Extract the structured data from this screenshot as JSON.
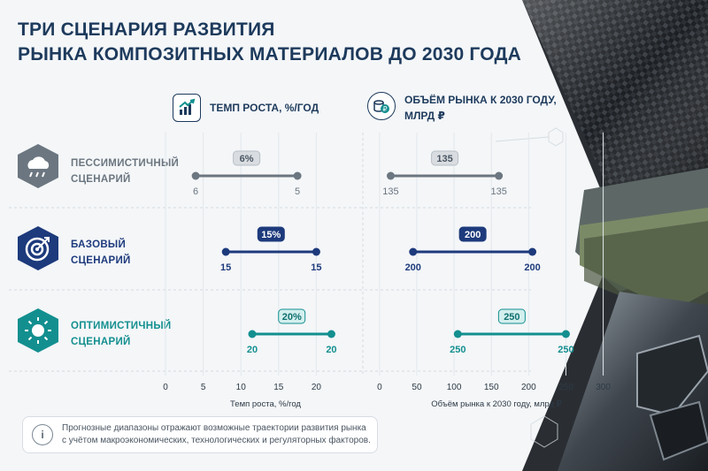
{
  "title": {
    "line1": "ТРИ СЦЕНАРИЯ РАЗВИТИЯ",
    "line2": "РЫНКА КОМПОЗИТНЫХ МАТЕРИАЛОВ ДО 2030 ГОДА"
  },
  "columns": {
    "left": {
      "header": "ТЕМП РОСТА, %/ГОД",
      "icon": "growth-chart-icon"
    },
    "right": {
      "header_line1": "ОБЪЁМ РЫНКА К 2030 ГОДУ,",
      "header_line2": "МЛРД ₽",
      "icon": "coins-ruble-icon"
    }
  },
  "scenarios": [
    {
      "line1": "ПЕССИМИСТИЧНЫЙ",
      "line2": "СЦЕНАРИЙ",
      "icon": "cloud-rain-icon",
      "color": "#6b7680"
    },
    {
      "line1": "БАЗОВЫЙ",
      "line2": "СЦЕНАРИЙ",
      "icon": "target-icon",
      "color": "#1d3a7c"
    },
    {
      "line1": "ОПТИМИСТИЧНЫЙ",
      "line2": "СЦЕНАРИЙ",
      "icon": "sun-icon",
      "color": "#138f8f"
    }
  ],
  "note": {
    "line1": "Прогнозные диапазоны отражают возможные траектории развития рынка",
    "line2": "с учётом макроэкономических, технологических и регуляторных факторов."
  },
  "chart_data": [
    {
      "type": "range",
      "xlabel": "Темп роста, %/год",
      "xlim": [
        -2,
        25
      ],
      "ticks": [
        0,
        5,
        10,
        15,
        20
      ],
      "series": [
        {
          "name": "ПЕССИМИСТИЧНЫЙ СЦЕНАРИЙ",
          "badge": "6%",
          "low_label": "6",
          "high_label": "5",
          "values": [
            4,
            17.5
          ]
        },
        {
          "name": "БАЗОВЫЙ СЦЕНАРИЙ",
          "badge": "15%",
          "low_label": "15",
          "high_label": "15",
          "values": [
            8,
            20
          ]
        },
        {
          "name": "ОПТИМИСТИЧНЫЙ СЦЕНАРИЙ",
          "badge": "20%",
          "low_label": "20",
          "high_label": "20",
          "values": [
            11.5,
            22
          ]
        }
      ]
    },
    {
      "type": "range",
      "xlabel": "Объём рынка к 2030 году, млрд ₽",
      "xlim": [
        -20,
        310
      ],
      "ticks": [
        0,
        50,
        100,
        150,
        200,
        250,
        300
      ],
      "series": [
        {
          "name": "ПЕССИМИСТИЧНЫЙ СЦЕНАРИЙ",
          "badge": "135",
          "low_label": "135",
          "high_label": "135",
          "values": [
            15,
            160
          ]
        },
        {
          "name": "БАЗОВЫЙ СЦЕНАРИЙ",
          "badge": "200",
          "low_label": "200",
          "high_label": "200",
          "values": [
            45,
            205
          ]
        },
        {
          "name": "ОПТИМИСТИЧНЫЙ СЦЕНАРИЙ",
          "badge": "250",
          "low_label": "250",
          "high_label": "250",
          "values": [
            105,
            250
          ]
        }
      ]
    }
  ]
}
